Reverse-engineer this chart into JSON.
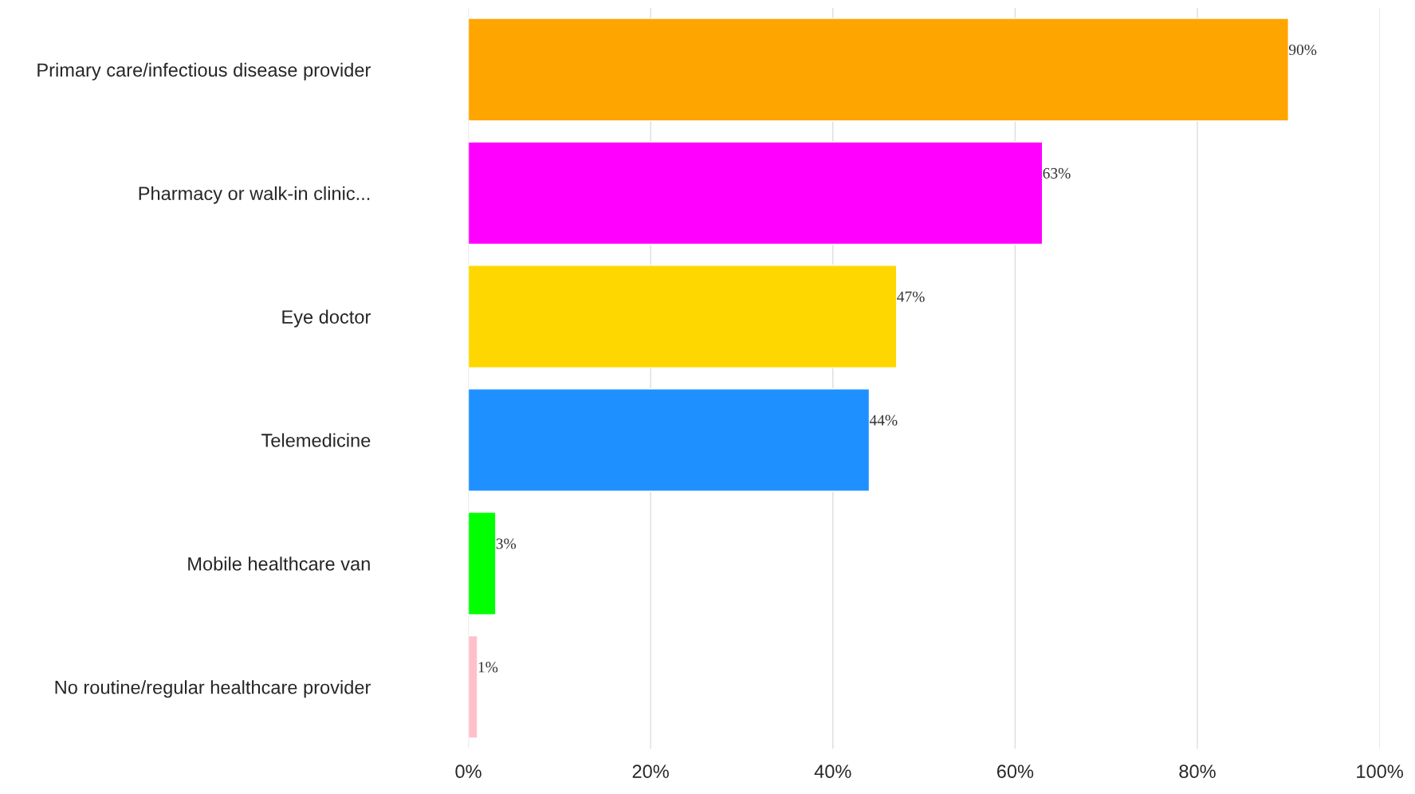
{
  "chart_data": {
    "type": "bar",
    "orientation": "horizontal",
    "categories": [
      "Primary care/infectious disease provider",
      "Pharmacy or walk-in clinic...",
      "Eye doctor",
      "Telemedicine",
      "Mobile healthcare van",
      "No routine/regular healthcare provider"
    ],
    "values": [
      90,
      63,
      47,
      44,
      3,
      1
    ],
    "value_labels": [
      "90%",
      "63%",
      "47%",
      "44%",
      "3%",
      "1%"
    ],
    "colors": [
      "#ffa500",
      "#ff00ff",
      "#ffd700",
      "#1e90ff",
      "#00ff00",
      "#ffc0cb"
    ],
    "xlim": [
      0,
      100
    ],
    "xticks": [
      {
        "value": 0,
        "label": "0%"
      },
      {
        "value": 20,
        "label": "20%"
      },
      {
        "value": 40,
        "label": "40%"
      },
      {
        "value": 60,
        "label": "60%"
      },
      {
        "value": 80,
        "label": "80%"
      },
      {
        "value": 100,
        "label": "100%"
      }
    ],
    "grid": "x"
  }
}
